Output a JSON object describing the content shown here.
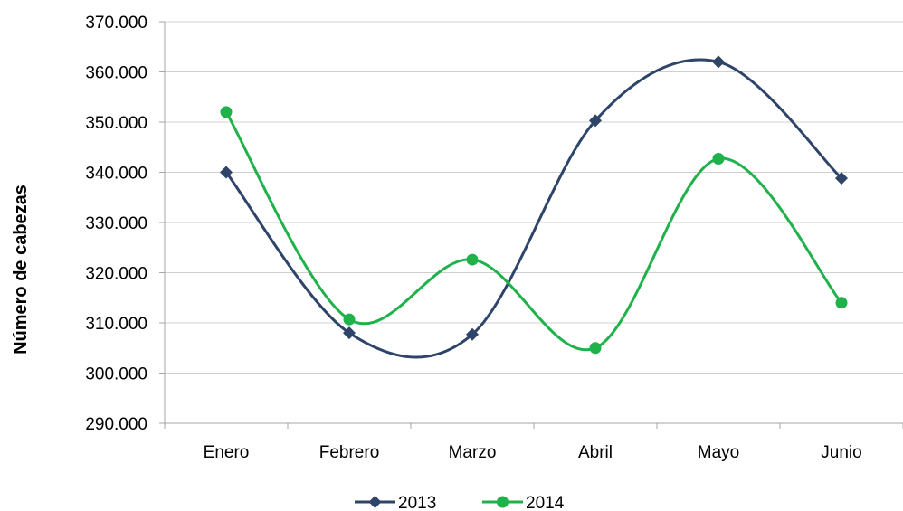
{
  "chart_data": {
    "type": "line",
    "title": "",
    "xlabel": "",
    "ylabel": "Número de cabezas",
    "categories": [
      "Enero",
      "Febrero",
      "Marzo",
      "Abril",
      "Mayo",
      "Junio"
    ],
    "ylim": [
      290000,
      370000
    ],
    "yticks": [
      290000,
      300000,
      310000,
      320000,
      330000,
      340000,
      350000,
      360000,
      370000
    ],
    "ytick_labels": [
      "290.000",
      "300.000",
      "310.000",
      "320.000",
      "330.000",
      "340.000",
      "350.000",
      "360.000",
      "370.000"
    ],
    "grid": true,
    "smooth": true,
    "legend_position": "bottom",
    "series": [
      {
        "name": "2013",
        "color": "#2E4468",
        "marker": "diamond",
        "values": [
          340000,
          308000,
          307700,
          350300,
          362000,
          338800
        ]
      },
      {
        "name": "2014",
        "color": "#1FB24A",
        "marker": "circle",
        "values": [
          352000,
          310700,
          322600,
          305000,
          342700,
          314000
        ]
      }
    ]
  }
}
